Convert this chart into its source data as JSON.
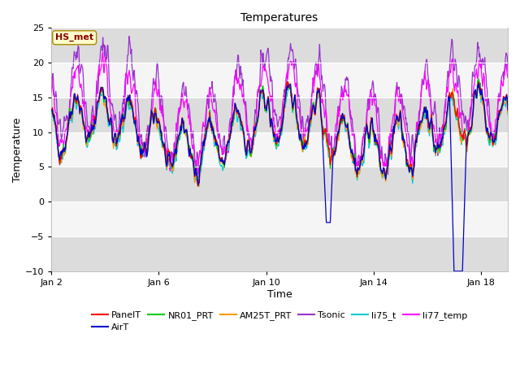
{
  "title": "Temperatures",
  "xlabel": "Time",
  "ylabel": "Temperature",
  "ylim": [
    -10,
    25
  ],
  "yticks": [
    -10,
    -5,
    0,
    5,
    10,
    15,
    20,
    25
  ],
  "xstart": 2,
  "xend": 19,
  "xtick_labels": [
    "Jan 2",
    "Jan 6",
    "Jan 10",
    "Jan 14",
    "Jan 18"
  ],
  "xtick_positions": [
    2,
    6,
    10,
    14,
    18
  ],
  "series_colors": {
    "PanelT": "#ff0000",
    "AirT": "#0000cc",
    "NR01_PRT": "#00cc00",
    "AM25T_PRT": "#ff9900",
    "Tsonic": "#9933cc",
    "li75_t": "#00cccc",
    "li77_temp": "#ff00ff"
  },
  "annotation_text": "HS_met",
  "annotation_box_color": "#ffffcc",
  "annotation_text_color": "#880000",
  "plot_bg_color": "#ebebeb",
  "band_light": "#f5f5f5",
  "band_dark": "#dcdcdc",
  "seed": 42,
  "figwidth": 6.4,
  "figheight": 4.8,
  "dpi": 100
}
